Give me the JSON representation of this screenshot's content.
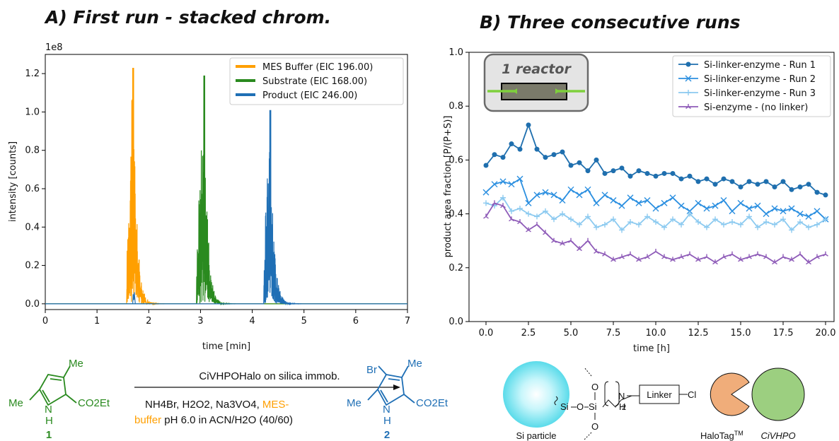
{
  "panel_a": {
    "title": "A) First run - stacked chrom.",
    "chart_data": {
      "type": "line",
      "xlabel": "time [min]",
      "ylabel": "intensity [counts]",
      "y_multiplier": "1e8",
      "xlim": [
        0,
        7
      ],
      "ylim": [
        -0.03,
        1.3
      ],
      "x_ticks": [
        "0",
        "1",
        "2",
        "3",
        "4",
        "5",
        "6",
        "7"
      ],
      "y_ticks": [
        "0.0",
        "0.2",
        "0.4",
        "0.6",
        "0.8",
        "1.0",
        "1.2"
      ],
      "legend_position": "top-right",
      "series": [
        {
          "name": "MES Buffer (EIC 196.00)",
          "color": "#ff9f00",
          "peak_time": 1.7,
          "peak_height": 1.23,
          "start": 1.57
        },
        {
          "name": "Substrate (EIC 168.00)",
          "color": "#2a8a1f",
          "peak_time": 3.07,
          "peak_height": 1.19,
          "start": 2.92
        },
        {
          "name": "Product (EIC 246.00)",
          "color": "#1f6fb5",
          "peak_time": 4.35,
          "peak_height": 1.01,
          "start": 4.22
        }
      ]
    }
  },
  "panel_b": {
    "title": "B) Three consecutive runs",
    "inset_label": "1 reactor",
    "chart_data": {
      "type": "line",
      "xlabel": "time [h]",
      "ylabel": "product area fraction [P/(P+S)]",
      "xlim": [
        -1,
        20.5
      ],
      "ylim": [
        0.0,
        1.0
      ],
      "x_ticks": [
        "0.0",
        "2.5",
        "5.0",
        "7.5",
        "10.0",
        "12.5",
        "15.0",
        "17.5",
        "20.0"
      ],
      "y_ticks": [
        "0.0",
        "0.2",
        "0.4",
        "0.6",
        "0.8",
        "1.0"
      ],
      "legend_position": "top-right",
      "series": [
        {
          "name": "Si-linker-enzyme - Run 1",
          "color": "#1f6fae",
          "marker": "circle",
          "x": [
            0,
            0.5,
            1,
            1.5,
            2,
            2.5,
            3,
            3.5,
            4,
            4.5,
            5,
            5.5,
            6,
            6.5,
            7,
            7.5,
            8,
            8.5,
            9,
            9.5,
            10,
            10.5,
            11,
            11.5,
            12,
            12.5,
            13,
            13.5,
            14,
            14.5,
            15,
            15.5,
            16,
            16.5,
            17,
            17.5,
            18,
            18.5,
            19,
            19.5,
            20
          ],
          "y": [
            0.58,
            0.62,
            0.61,
            0.66,
            0.64,
            0.73,
            0.64,
            0.61,
            0.62,
            0.63,
            0.58,
            0.59,
            0.56,
            0.6,
            0.55,
            0.56,
            0.57,
            0.54,
            0.56,
            0.55,
            0.54,
            0.55,
            0.55,
            0.53,
            0.54,
            0.52,
            0.53,
            0.51,
            0.53,
            0.52,
            0.5,
            0.52,
            0.51,
            0.52,
            0.5,
            0.52,
            0.49,
            0.5,
            0.51,
            0.48,
            0.47
          ]
        },
        {
          "name": "Si-linker-enzyme - Run 2",
          "color": "#2b8fe0",
          "marker": "x",
          "x": [
            0,
            0.5,
            1,
            1.5,
            2,
            2.5,
            3,
            3.5,
            4,
            4.5,
            5,
            5.5,
            6,
            6.5,
            7,
            7.5,
            8,
            8.5,
            9,
            9.5,
            10,
            10.5,
            11,
            11.5,
            12,
            12.5,
            13,
            13.5,
            14,
            14.5,
            15,
            15.5,
            16,
            16.5,
            17,
            17.5,
            18,
            18.5,
            19,
            19.5,
            20
          ],
          "y": [
            0.48,
            0.51,
            0.52,
            0.51,
            0.53,
            0.44,
            0.47,
            0.48,
            0.47,
            0.45,
            0.49,
            0.47,
            0.49,
            0.44,
            0.47,
            0.45,
            0.43,
            0.46,
            0.44,
            0.45,
            0.42,
            0.44,
            0.46,
            0.43,
            0.41,
            0.44,
            0.42,
            0.43,
            0.45,
            0.41,
            0.44,
            0.42,
            0.43,
            0.4,
            0.42,
            0.41,
            0.42,
            0.4,
            0.39,
            0.41,
            0.38
          ]
        },
        {
          "name": "Si-linker-enzyme - Run 3",
          "color": "#8ccaf0",
          "marker": "plus",
          "x": [
            0,
            0.5,
            1,
            1.5,
            2,
            2.5,
            3,
            3.5,
            4,
            4.5,
            5,
            5.5,
            6,
            6.5,
            7,
            7.5,
            8,
            8.5,
            9,
            9.5,
            10,
            10.5,
            11,
            11.5,
            12,
            12.5,
            13,
            13.5,
            14,
            14.5,
            15,
            15.5,
            16,
            16.5,
            17,
            17.5,
            18,
            18.5,
            19,
            19.5,
            20
          ],
          "y": [
            0.44,
            0.43,
            0.46,
            0.41,
            0.42,
            0.4,
            0.39,
            0.41,
            0.38,
            0.4,
            0.38,
            0.36,
            0.39,
            0.35,
            0.36,
            0.38,
            0.34,
            0.37,
            0.36,
            0.39,
            0.37,
            0.35,
            0.38,
            0.36,
            0.4,
            0.37,
            0.35,
            0.38,
            0.36,
            0.37,
            0.36,
            0.39,
            0.35,
            0.37,
            0.36,
            0.38,
            0.34,
            0.37,
            0.35,
            0.36,
            0.38
          ]
        },
        {
          "name": "Si-enzyme - (no linker)",
          "color": "#8e5bb8",
          "marker": "tri",
          "x": [
            0,
            0.5,
            1,
            1.5,
            2,
            2.5,
            3,
            3.5,
            4,
            4.5,
            5,
            5.5,
            6,
            6.5,
            7,
            7.5,
            8,
            8.5,
            9,
            9.5,
            10,
            10.5,
            11,
            11.5,
            12,
            12.5,
            13,
            13.5,
            14,
            14.5,
            15,
            15.5,
            16,
            16.5,
            17,
            17.5,
            18,
            18.5,
            19,
            19.5,
            20
          ],
          "y": [
            0.39,
            0.44,
            0.43,
            0.38,
            0.37,
            0.34,
            0.36,
            0.33,
            0.3,
            0.29,
            0.3,
            0.27,
            0.3,
            0.26,
            0.25,
            0.23,
            0.24,
            0.25,
            0.23,
            0.24,
            0.26,
            0.24,
            0.23,
            0.24,
            0.25,
            0.23,
            0.24,
            0.22,
            0.24,
            0.25,
            0.23,
            0.24,
            0.25,
            0.24,
            0.22,
            0.24,
            0.23,
            0.25,
            0.22,
            0.24,
            0.25
          ]
        }
      ]
    }
  },
  "scheme_a": {
    "reagent_top": "CiVHPOHalo on silica immob.",
    "conditions_1": "NH4Br, H2O2, Na3VO4, ",
    "conditions_mes": "MES-",
    "conditions_2a": "buffer",
    "conditions_2b": " pH 6.0 in ACN/H2O (40/60)",
    "reactant_me_top": "Me",
    "reactant_me_left": "Me",
    "reactant_ester": "CO2Et",
    "reactant_nh": "N",
    "reactant_h": "H",
    "reactant_id": "1",
    "product_br": "Br",
    "product_me_top": "Me",
    "product_me_left": "Me",
    "product_ester": "CO2Et",
    "product_nh": "N",
    "product_h": "H",
    "product_id": "2",
    "colors": {
      "reactant": "#2a8a1f",
      "product": "#1f6fb5",
      "mes": "#ff9f00"
    }
  },
  "scheme_b": {
    "si_label": "Si",
    "o_label": "O",
    "subscript_2": "2",
    "nh_label": "N",
    "h_label": "H",
    "linker_label": "Linker",
    "cl_label": "Cl",
    "particle_label": "Si particle",
    "halotag_label": "HaloTag",
    "halotag_tm": "TM",
    "enzyme_label": "CiVHPO",
    "colors": {
      "particle": "#7fe6f2",
      "halotag": "#f0ad7a",
      "enzyme": "#9ccf80"
    }
  }
}
